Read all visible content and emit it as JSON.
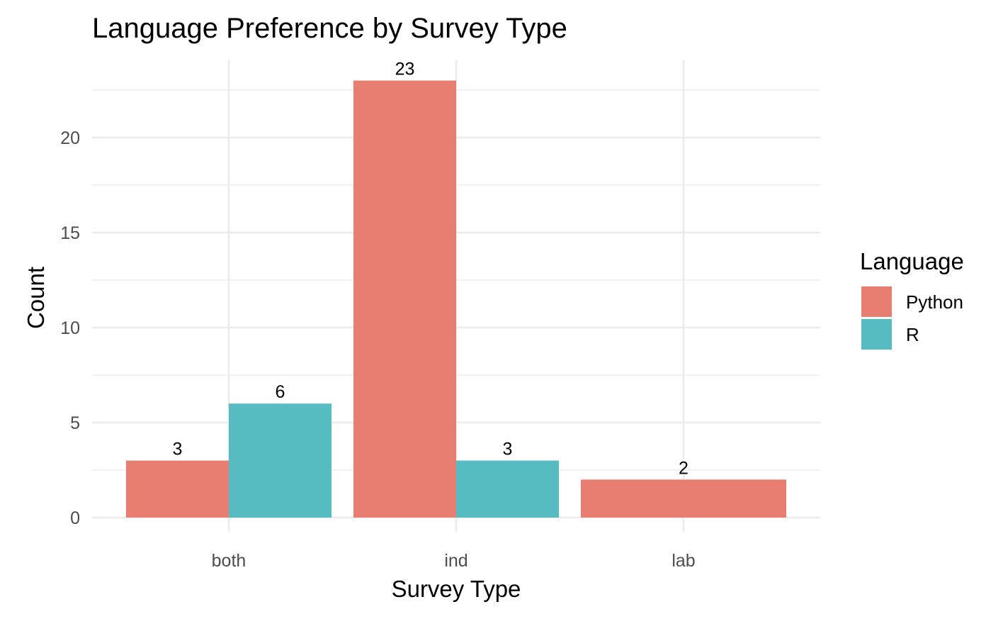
{
  "chart_data": {
    "type": "bar",
    "title": "Language Preference by Survey Type",
    "xlabel": "Survey Type",
    "ylabel": "Count",
    "categories": [
      "both",
      "ind",
      "lab"
    ],
    "series": [
      {
        "name": "Python",
        "color": "#E87D72",
        "values": [
          3,
          23,
          2
        ]
      },
      {
        "name": "R",
        "color": "#56BCC2",
        "values": [
          6,
          3,
          null
        ]
      }
    ],
    "ylim": [
      0,
      23
    ],
    "yticks": [
      0,
      5,
      10,
      15,
      20
    ],
    "grid": true,
    "legend": {
      "title": "Language",
      "position": "right"
    }
  }
}
